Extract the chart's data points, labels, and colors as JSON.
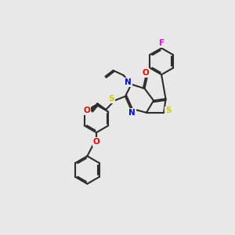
{
  "background_color": "#e8e8e8",
  "bond_color": "#2d2d2d",
  "atom_colors": {
    "N": "#0000ee",
    "O": "#ee0000",
    "S": "#cccc00",
    "F": "#ee00ee"
  },
  "figsize": [
    3.0,
    3.0
  ],
  "dpi": 100
}
